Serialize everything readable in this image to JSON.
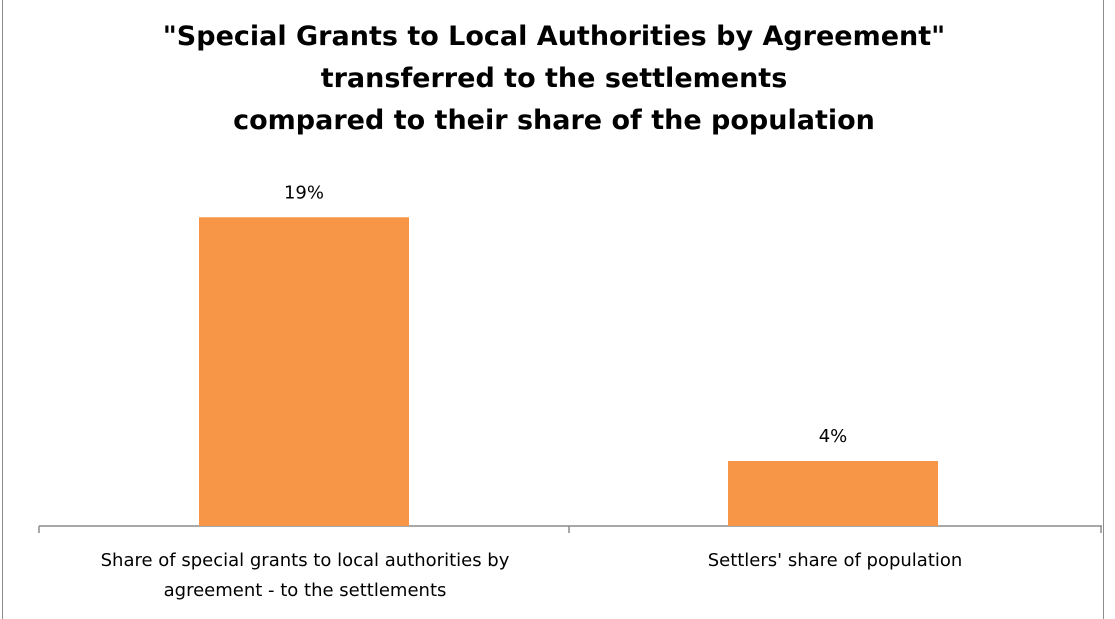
{
  "chart_data": {
    "type": "bar",
    "title_lines": [
      "\"Special Grants to Local Authorities by Agreement\"",
      "transferred to the settlements",
      "compared to their share of the population"
    ],
    "categories": [
      "Share of special grants to local authorities by agreement - to the settlements",
      "Settlers' share of  population"
    ],
    "category_lines": [
      [
        "Share of special grants to local authorities by",
        "agreement - to the settlements"
      ],
      [
        "Settlers' share of  population"
      ]
    ],
    "values": [
      19,
      4
    ],
    "data_labels": [
      "19%",
      "4%"
    ],
    "ylim": [
      0,
      20
    ],
    "bar_color": "#f79646",
    "axis_color": "#8c8c8c",
    "grid": false,
    "legend": false
  }
}
